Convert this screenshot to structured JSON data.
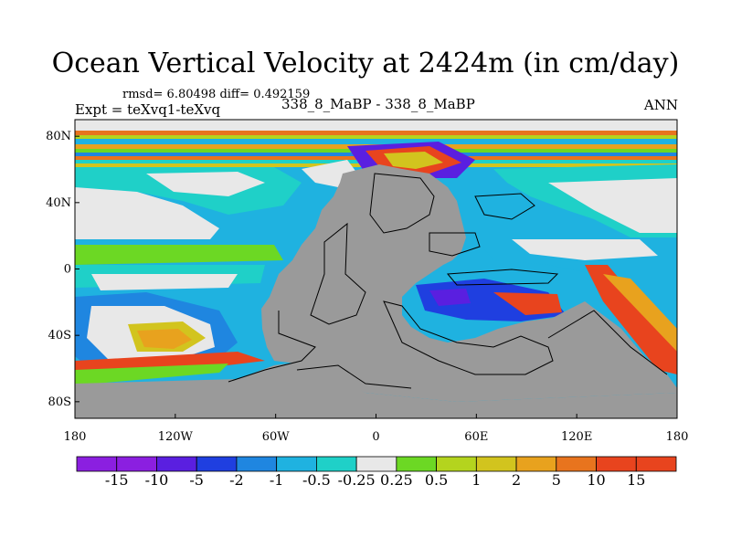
{
  "title": "Ocean Vertical Velocity at 2424m (in cm/day)",
  "stats_line": "rmsd= 6.80498 diff= 0.492159",
  "expt_line": "Expt = teXvq1-teXvq",
  "cases_line": "338_8_MaBP - 338_8_MaBP",
  "season": "ANN",
  "colors": {
    "land": "#9a9a9a",
    "missing": "#e8e8e8",
    "palette": [
      "#8b1fe0",
      "#5a1fe0",
      "#1f3fe0",
      "#1f86e0",
      "#1fb2e0",
      "#1fd0c8",
      "#e8e8e8",
      "#6cd824",
      "#b4d41e",
      "#d2c41e",
      "#e8a21e",
      "#e8741e",
      "#e8441e"
    ]
  },
  "map": {
    "lat_ticks": [
      {
        "value": 80,
        "label": "80N"
      },
      {
        "value": 40,
        "label": "40N"
      },
      {
        "value": 0,
        "label": "0"
      },
      {
        "value": -40,
        "label": "40S"
      },
      {
        "value": -80,
        "label": "80S"
      }
    ],
    "lon_ticks": [
      {
        "value": -180,
        "label": "180"
      },
      {
        "value": -120,
        "label": "120W"
      },
      {
        "value": -60,
        "label": "60W"
      },
      {
        "value": 0,
        "label": "0"
      },
      {
        "value": 60,
        "label": "60E"
      },
      {
        "value": 120,
        "label": "120E"
      },
      {
        "value": 180,
        "label": "180"
      }
    ]
  },
  "colorbar": {
    "labels": [
      "-15",
      "-10",
      "-5",
      "-2",
      "-1",
      "-0.5",
      "-0.25",
      "0.25",
      "0.5",
      "1",
      "2",
      "5",
      "10",
      "15"
    ]
  }
}
